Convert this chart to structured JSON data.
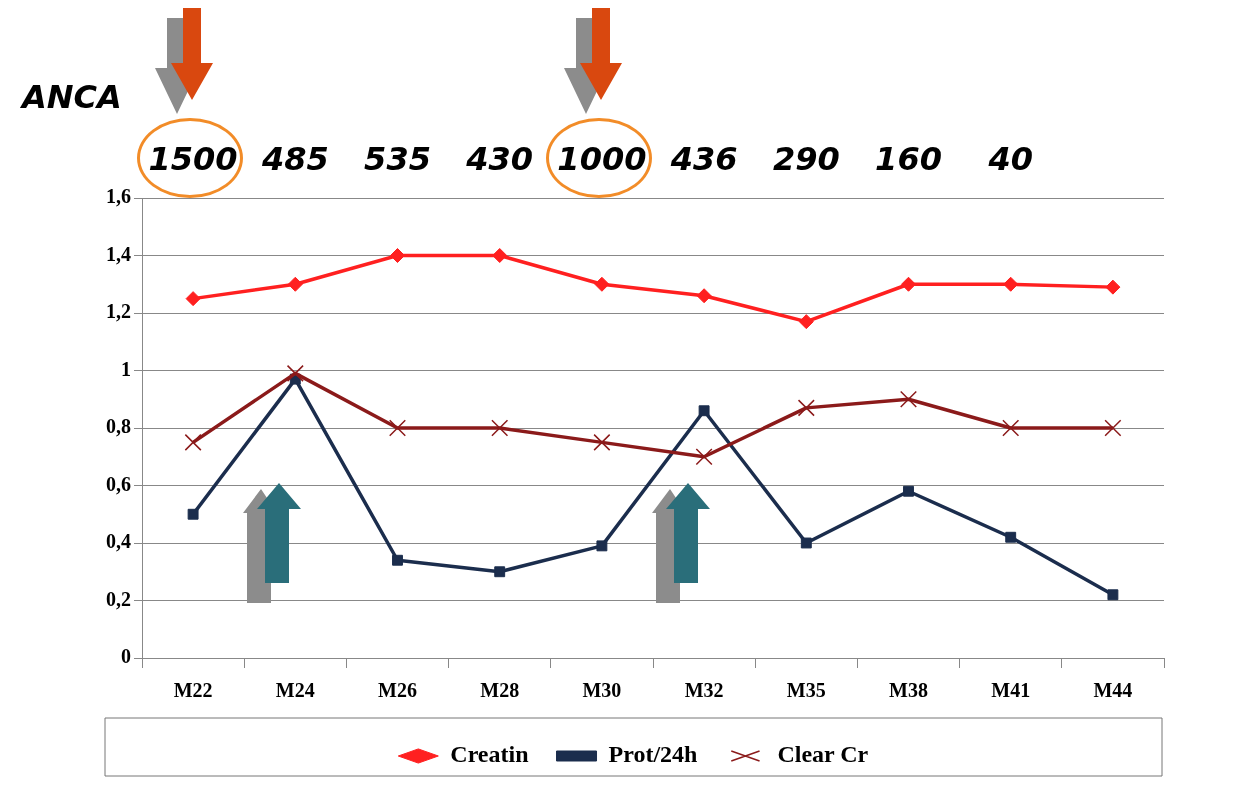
{
  "chart_data": {
    "type": "line",
    "categories": [
      "M22",
      "M24",
      "M26",
      "M28",
      "M30",
      "M32",
      "M35",
      "M38",
      "M41",
      "M44"
    ],
    "series": [
      {
        "name": "Creatin",
        "color": "#ff2020",
        "marker": "diamond",
        "values": [
          1.25,
          1.3,
          1.4,
          1.4,
          1.3,
          1.26,
          1.17,
          1.3,
          1.3,
          1.29
        ]
      },
      {
        "name": "Prot/24h",
        "color": "#1b2d4d",
        "marker": "square",
        "values": [
          0.5,
          0.97,
          0.34,
          0.3,
          0.39,
          0.86,
          0.4,
          0.58,
          0.42,
          0.22
        ]
      },
      {
        "name": "Clear Cr",
        "color": "#8b1a1a",
        "marker": "cross",
        "values": [
          0.75,
          0.99,
          0.8,
          0.8,
          0.75,
          0.7,
          0.87,
          0.9,
          0.8,
          0.8
        ]
      }
    ],
    "ylim": [
      0,
      1.6
    ],
    "yticks": [
      0,
      {
        "value": 0.2,
        "label": "0,2"
      },
      {
        "value": 0.4,
        "label": "0,4"
      },
      {
        "value": 0.6,
        "label": "0,6"
      },
      {
        "value": 0.8,
        "label": "0,8"
      },
      1,
      {
        "value": 1.2,
        "label": "1,2"
      },
      {
        "value": 1.4,
        "label": "1,4"
      },
      {
        "value": 1.6,
        "label": "1,6"
      }
    ],
    "grid": "y",
    "legend": "bottom",
    "line_style": "solid",
    "annotations": [
      "ANCA",
      "1500",
      "485",
      "535",
      "430",
      "1000",
      "436",
      "290",
      "160",
      "40"
    ]
  }
}
